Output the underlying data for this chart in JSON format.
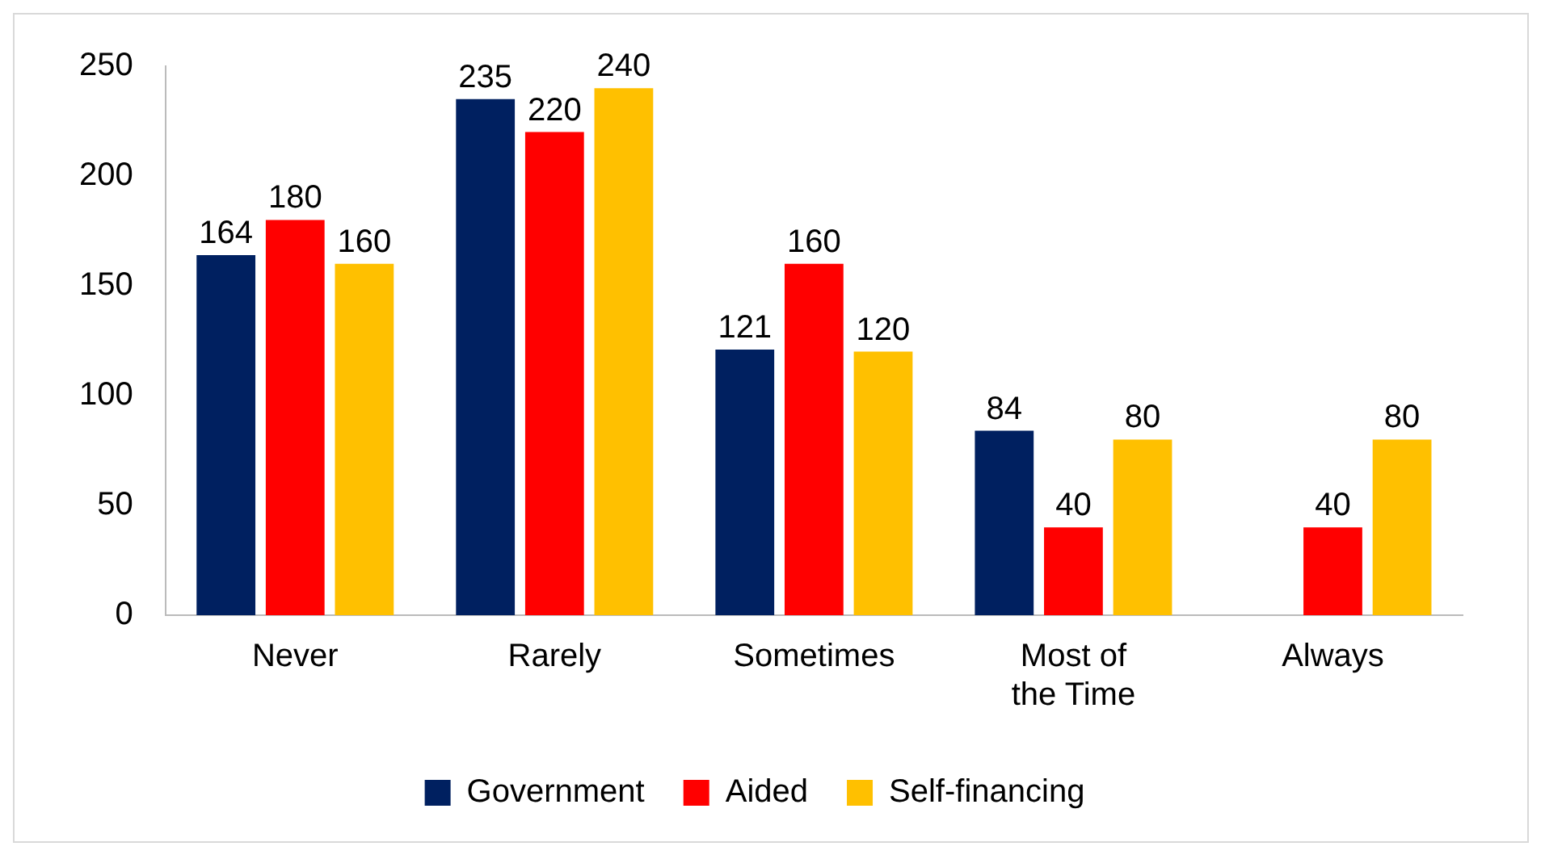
{
  "chart_data": {
    "type": "bar",
    "categories": [
      "Never",
      "Rarely",
      "Sometimes",
      "Most of the Time",
      "Always"
    ],
    "series": [
      {
        "name": "Government",
        "color": "#002060",
        "values": [
          164,
          235,
          121,
          84,
          null
        ]
      },
      {
        "name": "Aided",
        "color": "#ff0000",
        "values": [
          180,
          220,
          160,
          40,
          40
        ]
      },
      {
        "name": "Self-financing",
        "color": "#ffc000",
        "values": [
          160,
          240,
          120,
          80,
          80
        ]
      }
    ],
    "ylim": [
      0,
      250
    ],
    "yticks": [
      0,
      50,
      100,
      150,
      200,
      250
    ],
    "grid": false,
    "legend": "bottom",
    "data_labels": true
  }
}
